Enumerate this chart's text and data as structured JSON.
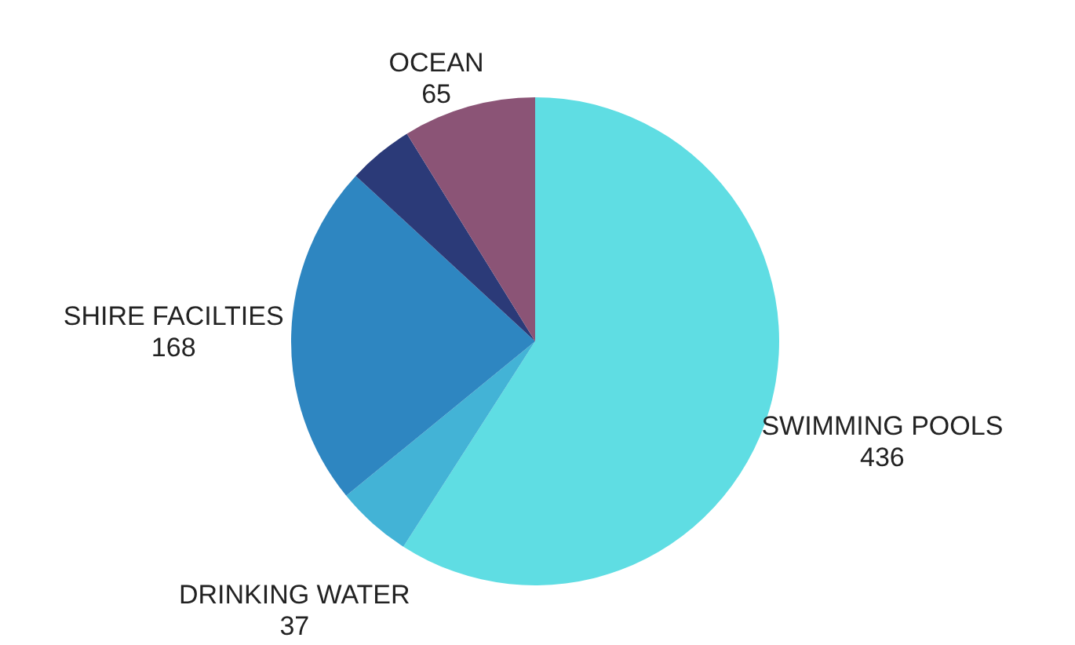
{
  "chart_data": {
    "type": "pie",
    "categories": [
      "SWIMMING POOLS",
      "DRINKING WATER",
      "SHIRE FACILTIES",
      null,
      "OCEAN"
    ],
    "values": [
      436,
      37,
      168,
      32,
      65
    ],
    "colors": [
      "#5fdde3",
      "#43b3d6",
      "#2e86c1",
      "#2b3a78",
      "#8b5476"
    ],
    "value_labels": [
      "436",
      "37",
      "168",
      null,
      "65"
    ],
    "legend": false
  }
}
